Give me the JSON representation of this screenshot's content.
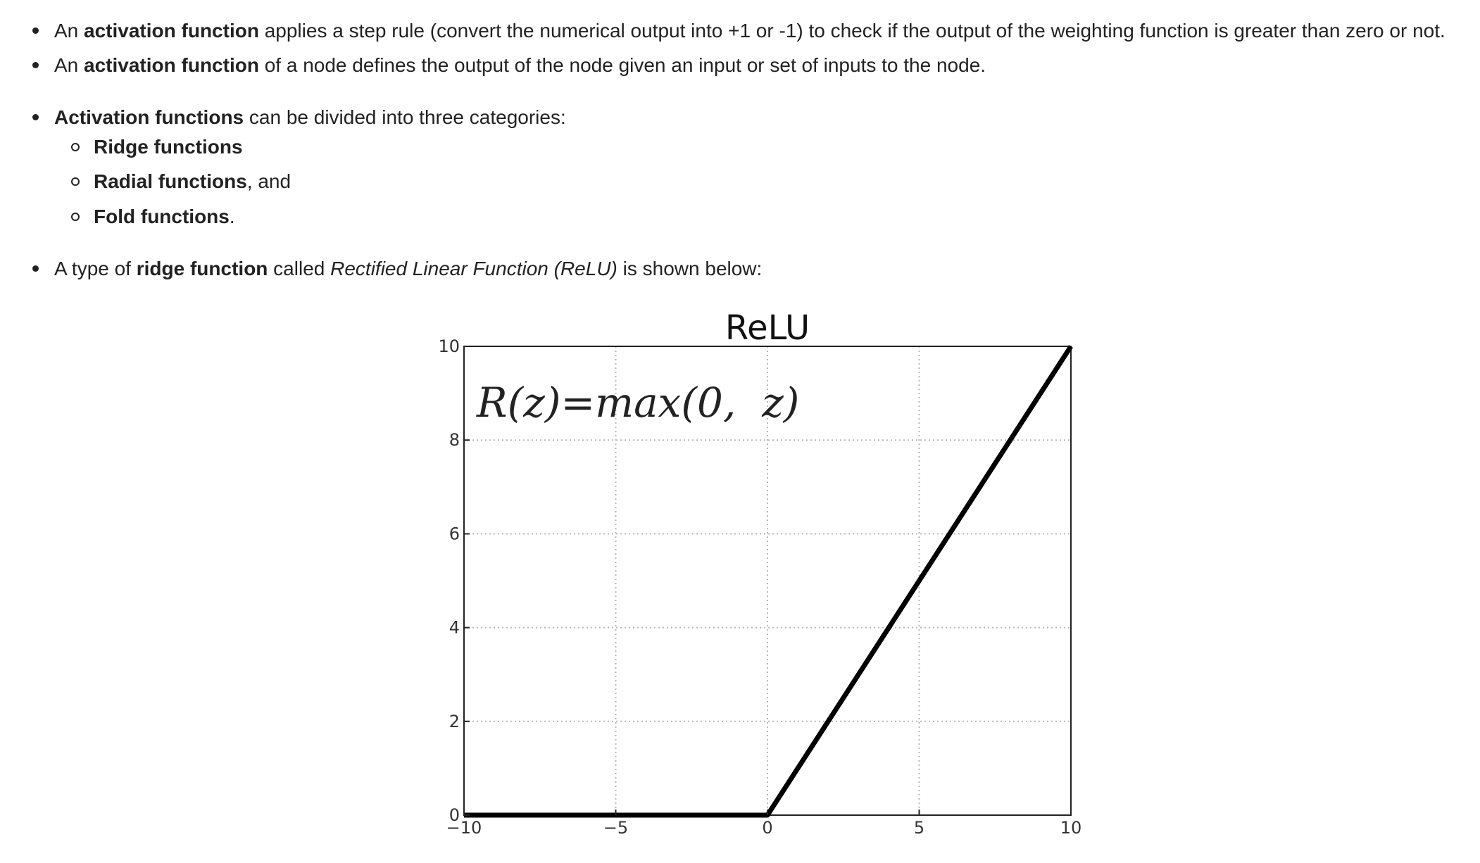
{
  "bullets": {
    "b1": {
      "pre": "An ",
      "bold": "activation function",
      "post": " applies a step rule (convert the numerical output into +1 or -1) to check if the output of the weighting function is greater than zero or not."
    },
    "b2": {
      "pre": "An ",
      "bold": "activation function",
      "post": " of a node defines the output of the node given an input or set of inputs to the node."
    },
    "b3": {
      "bold": "Activation functions",
      "post": " can be divided into three categories:",
      "sub": [
        {
          "bold": "Ridge functions",
          "post": ""
        },
        {
          "bold": "Radial functions",
          "post": ", and"
        },
        {
          "bold": "Fold functions",
          "post": "."
        }
      ]
    },
    "b4": {
      "pre": "A type of ",
      "bold": "ridge function",
      "mid": " called ",
      "italic": "Rectified Linear Function (ReLU)",
      "post": " is shown below:"
    }
  },
  "chart_data": {
    "type": "line",
    "title": "ReLU",
    "annotation": "R(z)=max(0,  z)",
    "xlim": [
      -10,
      10
    ],
    "ylim": [
      0,
      10
    ],
    "xticks": [
      -10,
      -5,
      0,
      5,
      10
    ],
    "xtick_labels": [
      "−10",
      "−5",
      "0",
      "5",
      "10"
    ],
    "yticks": [
      0,
      2,
      4,
      6,
      8,
      10
    ],
    "ytick_labels": [
      "0",
      "2",
      "4",
      "6",
      "8",
      "10"
    ],
    "grid": true,
    "series": [
      {
        "x": [
          -10,
          0,
          10
        ],
        "y": [
          0,
          0,
          10
        ],
        "color": "#000000"
      }
    ]
  }
}
